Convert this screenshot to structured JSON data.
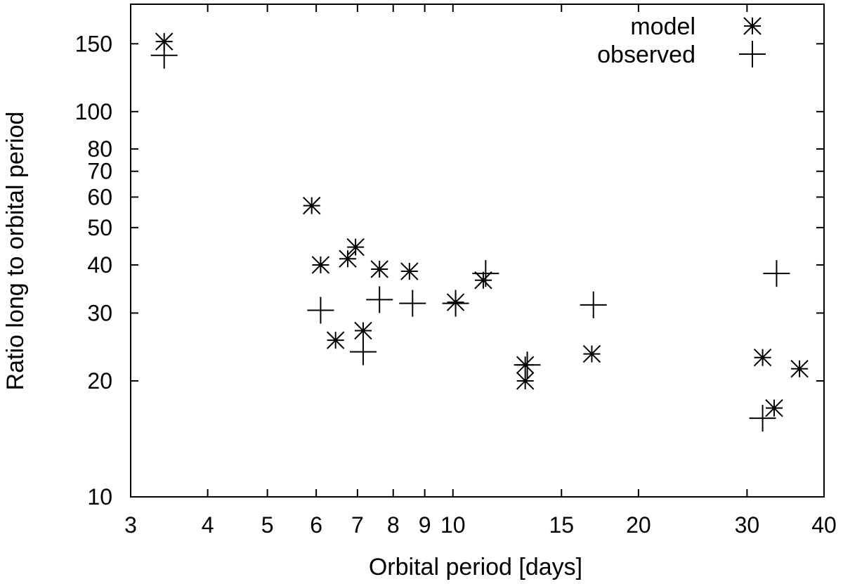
{
  "chart_data": {
    "type": "scatter",
    "title": "",
    "xlabel": "Orbital period [days]",
    "ylabel": "Ratio long to orbital period",
    "xscale": "log",
    "yscale": "log",
    "xlim": [
      3,
      40
    ],
    "ylim": [
      10,
      190
    ],
    "xticks": [
      3,
      4,
      5,
      6,
      7,
      8,
      9,
      10,
      15,
      20,
      30,
      40
    ],
    "xtick_labels": [
      "3",
      "4",
      "5",
      "6",
      "7",
      "8",
      "9",
      "10",
      "15",
      "20",
      "30",
      "40"
    ],
    "yticks": [
      10,
      20,
      30,
      40,
      50,
      60,
      70,
      80,
      100,
      150
    ],
    "ytick_labels": [
      "10",
      "20",
      "30",
      "40",
      "50",
      "60",
      "70",
      "80",
      "100",
      "150"
    ],
    "grid": false,
    "legend_position": "top-right",
    "series": [
      {
        "name": "model",
        "marker": "asterisk",
        "color": "#000000",
        "points": [
          {
            "x": 3.4,
            "y": 152
          },
          {
            "x": 5.9,
            "y": 57
          },
          {
            "x": 6.1,
            "y": 40
          },
          {
            "x": 6.45,
            "y": 25.5
          },
          {
            "x": 6.75,
            "y": 41.5
          },
          {
            "x": 6.95,
            "y": 44.5
          },
          {
            "x": 7.15,
            "y": 27
          },
          {
            "x": 7.6,
            "y": 39
          },
          {
            "x": 8.5,
            "y": 38.5
          },
          {
            "x": 10.1,
            "y": 32
          },
          {
            "x": 11.2,
            "y": 36.5
          },
          {
            "x": 13.1,
            "y": 22
          },
          {
            "x": 13.1,
            "y": 20
          },
          {
            "x": 16.8,
            "y": 23.5
          },
          {
            "x": 31.8,
            "y": 23
          },
          {
            "x": 33.2,
            "y": 17
          },
          {
            "x": 36.5,
            "y": 21.5
          }
        ]
      },
      {
        "name": "observed",
        "marker": "plus",
        "color": "#000000",
        "points": [
          {
            "x": 3.4,
            "y": 140
          },
          {
            "x": 6.1,
            "y": 30.5
          },
          {
            "x": 7.15,
            "y": 23.8
          },
          {
            "x": 7.6,
            "y": 32.5
          },
          {
            "x": 8.6,
            "y": 31.8
          },
          {
            "x": 10.1,
            "y": 31.8
          },
          {
            "x": 11.3,
            "y": 38
          },
          {
            "x": 13.2,
            "y": 22
          },
          {
            "x": 16.9,
            "y": 31.5
          },
          {
            "x": 31.8,
            "y": 16
          },
          {
            "x": 33.5,
            "y": 38
          }
        ]
      }
    ]
  }
}
